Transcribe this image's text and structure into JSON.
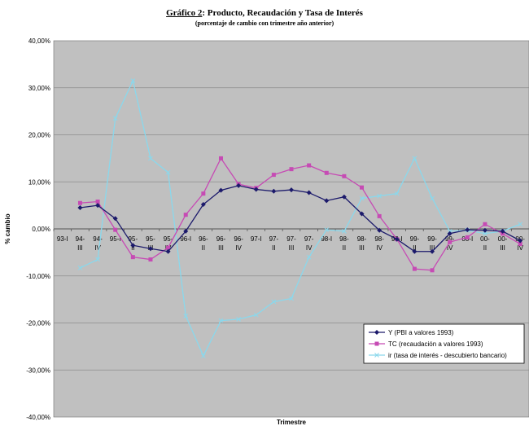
{
  "title": {
    "prefix": "Gráfico 2",
    "rest": ": Producto, Recaudación y Tasa de Interés"
  },
  "subtitle": "(porcentaje de cambio con trimestre año anterior)",
  "colors": {
    "plot_bg": "#c0c0c0",
    "gridline": "#8c8c8c",
    "series_y": "#1c1a6b",
    "series_tc": "#c64bb4",
    "series_ir": "#8ad8ec"
  },
  "chart_data": {
    "type": "line",
    "title": "Gráfico 2: Producto, Recaudación y Tasa de Interés",
    "subtitle": "(porcentaje de cambio con trimestre año anterior)",
    "xlabel": "Trimestre",
    "ylabel": "% cambio",
    "ylim": [
      -0.4,
      0.4
    ],
    "yticks": [
      "40,00%",
      "30,00%",
      "20,00%",
      "10,00%",
      "0,00%",
      "-10,00%",
      "-20,00%",
      "-30,00%",
      "-40,00%"
    ],
    "categories": [
      [
        "93-I"
      ],
      [
        "94-",
        "III"
      ],
      [
        "94-",
        "IV"
      ],
      [
        "95-I"
      ],
      [
        "95-",
        "II"
      ],
      [
        "95-",
        "III"
      ],
      [
        "95-",
        "IV"
      ],
      [
        "96-I"
      ],
      [
        "96-",
        "II"
      ],
      [
        "96-",
        "III"
      ],
      [
        "96-",
        "IV"
      ],
      [
        "97-I"
      ],
      [
        "97-",
        "II"
      ],
      [
        "97-",
        "III"
      ],
      [
        "97-",
        "IV"
      ],
      [
        "98-I"
      ],
      [
        "98-",
        "II"
      ],
      [
        "98-",
        "III"
      ],
      [
        "98-",
        "IV"
      ],
      [
        "99-I"
      ],
      [
        "99-",
        "II"
      ],
      [
        "99-",
        "III"
      ],
      [
        "99-",
        "IV"
      ],
      [
        "00-I"
      ],
      [
        "00-",
        "II"
      ],
      [
        "00-",
        "III"
      ],
      [
        "00-",
        "IV"
      ]
    ],
    "grid": true,
    "legend_position": "bottom-right",
    "series": [
      {
        "name": "Y (PBI a valores 1993)",
        "marker": "diamond",
        "values": [
          null,
          0.045,
          0.05,
          0.022,
          -0.035,
          -0.042,
          -0.048,
          -0.005,
          0.052,
          0.082,
          0.092,
          0.084,
          0.08,
          0.083,
          0.077,
          0.06,
          0.068,
          0.032,
          -0.003,
          -0.022,
          -0.048,
          -0.048,
          -0.01,
          -0.002,
          -0.003,
          -0.005,
          -0.025
        ]
      },
      {
        "name": "TC (recaudación a valores 1993)",
        "marker": "square",
        "values": [
          null,
          0.055,
          0.058,
          -0.002,
          -0.06,
          -0.065,
          -0.04,
          0.03,
          0.075,
          0.15,
          0.095,
          0.087,
          0.115,
          0.127,
          0.135,
          0.119,
          0.112,
          0.088,
          0.027,
          -0.022,
          -0.085,
          -0.088,
          -0.028,
          -0.018,
          0.01,
          -0.01,
          -0.032
        ]
      },
      {
        "name": "ir (tasa de interés - descubierto bancario)",
        "marker": "x",
        "values": [
          null,
          -0.083,
          -0.065,
          0.235,
          0.315,
          0.15,
          0.12,
          -0.185,
          -0.27,
          -0.195,
          -0.192,
          -0.183,
          -0.155,
          -0.148,
          -0.06,
          -0.002,
          -0.005,
          0.065,
          0.07,
          0.075,
          0.15,
          0.065,
          -0.005,
          -0.003,
          -0.01,
          -0.005,
          0.01
        ]
      }
    ]
  }
}
